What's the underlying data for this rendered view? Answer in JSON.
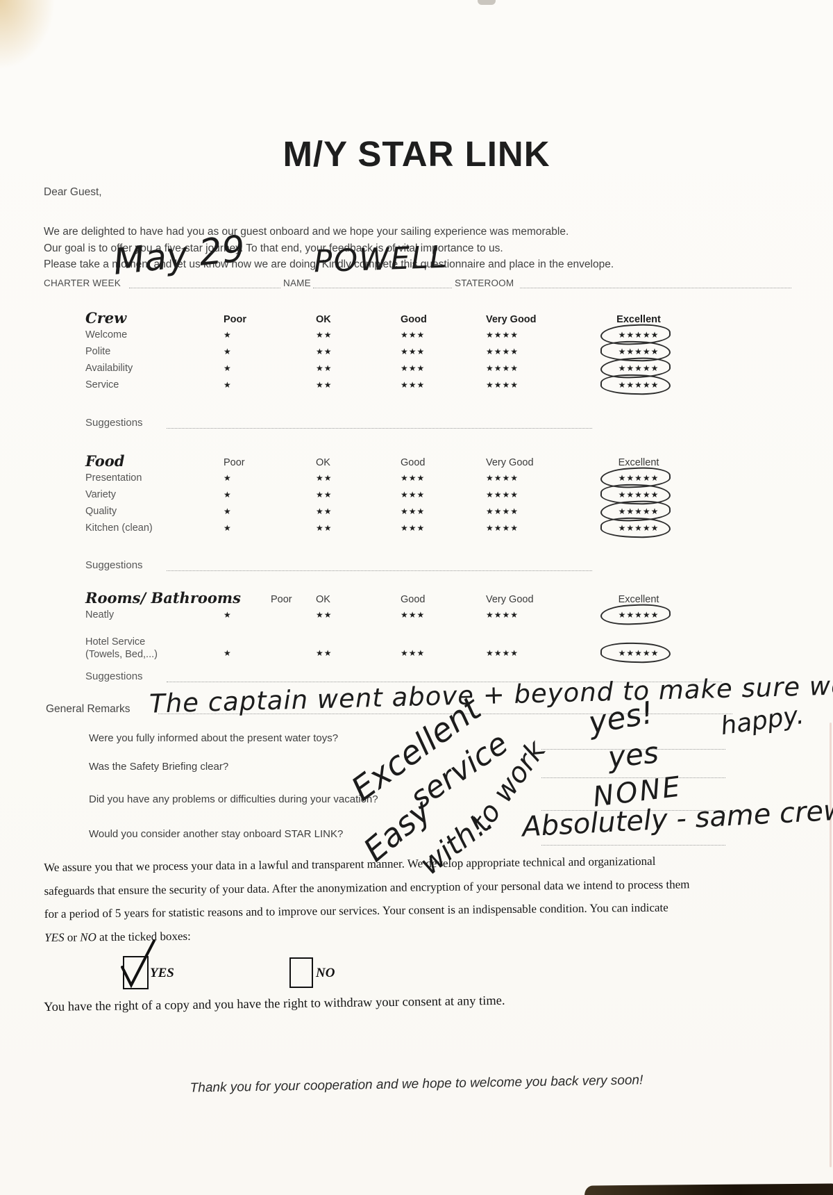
{
  "page": {
    "title": "M/Y STAR LINK",
    "salutation": "Dear Guest,",
    "intro_lines": [
      "We are delighted to have had you as our guest onboard and we hope your sailing experience was memorable.",
      "Our goal is to offer you a five-star journey. To that end, your feedback is of vital importance to us.",
      "Please take a moment and let us know how we are doing. Kindly complete this questionnaire and place in the envelope."
    ],
    "footer": "Thank you for your cooperation and we hope to welcome you back very soon!"
  },
  "header_fields": {
    "charter_week_label": "CHARTER WEEK",
    "name_label": "NAME",
    "stateroom_label": "STATEROOM"
  },
  "handwriting": {
    "charter_week": "May 29",
    "name": "POWELL",
    "stateroom": "",
    "general_remarks_line1": "The captain went above + beyond to make sure we were",
    "general_remarks_line2": "happy.",
    "diagonal_notes": [
      "Excellent",
      "service",
      "to work",
      "Easy",
      "with!."
    ]
  },
  "rating_scale": {
    "columns": [
      "Poor",
      "OK",
      "Good",
      "Very Good",
      "Excellent"
    ],
    "stars": [
      "★",
      "★★",
      "★★★",
      "★★★★",
      "★★★★★"
    ]
  },
  "rating_sections": [
    {
      "title": "Crew",
      "suggestions_label": "Suggestions",
      "suggestions_value": "",
      "rows": [
        {
          "label": "Welcome",
          "selected_rating": "Excellent",
          "circled": true
        },
        {
          "label": "Polite",
          "selected_rating": "Excellent",
          "circled": true
        },
        {
          "label": "Availability",
          "selected_rating": "Excellent",
          "circled": true
        },
        {
          "label": "Service",
          "selected_rating": "Excellent",
          "circled": true
        }
      ]
    },
    {
      "title": "Food",
      "suggestions_label": "Suggestions",
      "suggestions_value": "",
      "rows": [
        {
          "label": "Presentation",
          "selected_rating": "Excellent",
          "circled": true
        },
        {
          "label": "Variety",
          "selected_rating": "Excellent",
          "circled": true
        },
        {
          "label": "Quality",
          "selected_rating": "Excellent",
          "circled": true
        },
        {
          "label": "Kitchen (clean)",
          "selected_rating": "Excellent",
          "circled": true
        }
      ]
    },
    {
      "title": "Rooms/ Bathrooms",
      "suggestions_label": "Suggestions",
      "suggestions_value": "",
      "rows": [
        {
          "label": "Neatly",
          "selected_rating": "Excellent",
          "circled": true
        },
        {
          "label": "Hotel Service",
          "label2": "(Towels, Bed,...)",
          "selected_rating": "Excellent",
          "circled": true
        }
      ]
    }
  ],
  "general_remarks_label": "General Remarks",
  "questions": [
    {
      "text": "Were you fully informed about the present water toys?",
      "answer": "yes!"
    },
    {
      "text": "Was the Safety Briefing clear?",
      "answer": "yes"
    },
    {
      "text": "Did you have any problems or difficulties during your vacation?",
      "answer": "NONE"
    },
    {
      "text": "Would you consider another stay onboard STAR LINK?",
      "answer": "Absolutely - same crew!"
    }
  ],
  "privacy": {
    "line1": "We assure you that we process your data in a lawful and transparent manner. We develop appropriate technical and organizational",
    "line2": "safeguards that ensure the security of your data. After the anonymization and encryption of your personal data we intend to process them",
    "line3": "for a period of 5 years for statistic reasons and to improve our services. Your consent is an indispensable condition. You can indicate",
    "line4_yes": "YES",
    "line4_mid": "or",
    "line4_no": "NO",
    "line4_tail": "at the ticked boxes:",
    "yes_checkbox_label": "YES",
    "no_checkbox_label": "NO",
    "yes_checked": true,
    "no_checked": false,
    "rights_line": "You have the right of a copy and you have the right to withdraw your consent at any time."
  }
}
